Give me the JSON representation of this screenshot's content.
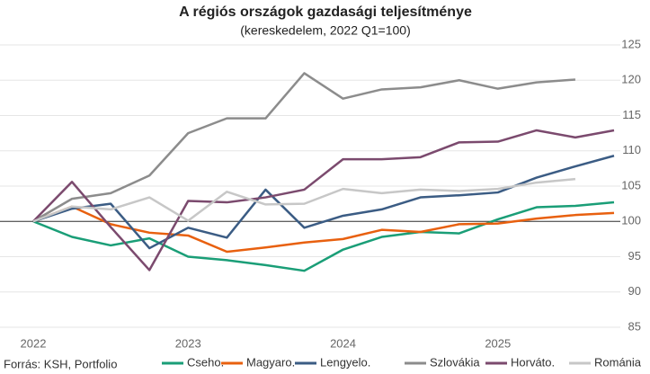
{
  "chart_data": {
    "type": "line",
    "title": "A régiós országok gazdasági teljesítménye",
    "subtitle": "(kereskedelem, 2022 Q1=100)",
    "source": "Forrás: KSH, Portfolio",
    "categories": [
      "2022",
      null,
      null,
      null,
      "2023",
      null,
      null,
      null,
      "2024",
      null,
      null,
      null,
      "2025",
      null,
      null,
      null
    ],
    "ylim": [
      85,
      125
    ],
    "yticks": [
      85,
      90,
      95,
      100,
      105,
      110,
      115,
      120,
      125
    ],
    "grid": true,
    "reference_line": 100,
    "series": [
      {
        "name": "Cseho.",
        "color": "#1a9e77",
        "values": [
          100,
          97.8,
          96.6,
          97.6,
          95,
          94.5,
          93.8,
          93,
          96,
          97.8,
          98.5,
          98.3,
          100.3,
          102,
          102.2,
          102.7
        ]
      },
      {
        "name": "Magyaro.",
        "color": "#e8600f",
        "values": [
          100,
          102.1,
          99.6,
          98.4,
          98,
          95.7,
          96.3,
          97,
          97.5,
          98.8,
          98.5,
          99.6,
          99.7,
          100.4,
          100.9,
          101.2
        ]
      },
      {
        "name": "Lengyelo.",
        "color": "#3b5c84",
        "values": [
          100,
          101.8,
          102.5,
          96.2,
          99.1,
          97.7,
          104.5,
          99.1,
          100.8,
          101.7,
          103.4,
          103.7,
          104.1,
          106.2,
          107.8,
          109.3
        ]
      },
      {
        "name": "Szlovákia",
        "color": "#8c8c8c",
        "values": [
          100,
          103.2,
          104,
          106.5,
          112.5,
          114.6,
          114.6,
          121,
          117.4,
          118.7,
          119,
          120,
          118.8,
          119.7,
          120.1,
          null
        ]
      },
      {
        "name": "Horváto.",
        "color": "#7b4a6e",
        "values": [
          100,
          105.6,
          99.2,
          93.1,
          102.9,
          102.7,
          103.4,
          104.5,
          108.8,
          108.8,
          109.1,
          111.2,
          111.3,
          112.9,
          111.9,
          112.9
        ]
      },
      {
        "name": "Románia",
        "color": "#c7c7c7",
        "values": [
          100,
          102.1,
          101.7,
          103.4,
          100.1,
          104.2,
          102.4,
          102.5,
          104.6,
          104,
          104.5,
          104.3,
          104.6,
          105.5,
          106,
          null
        ]
      }
    ]
  }
}
